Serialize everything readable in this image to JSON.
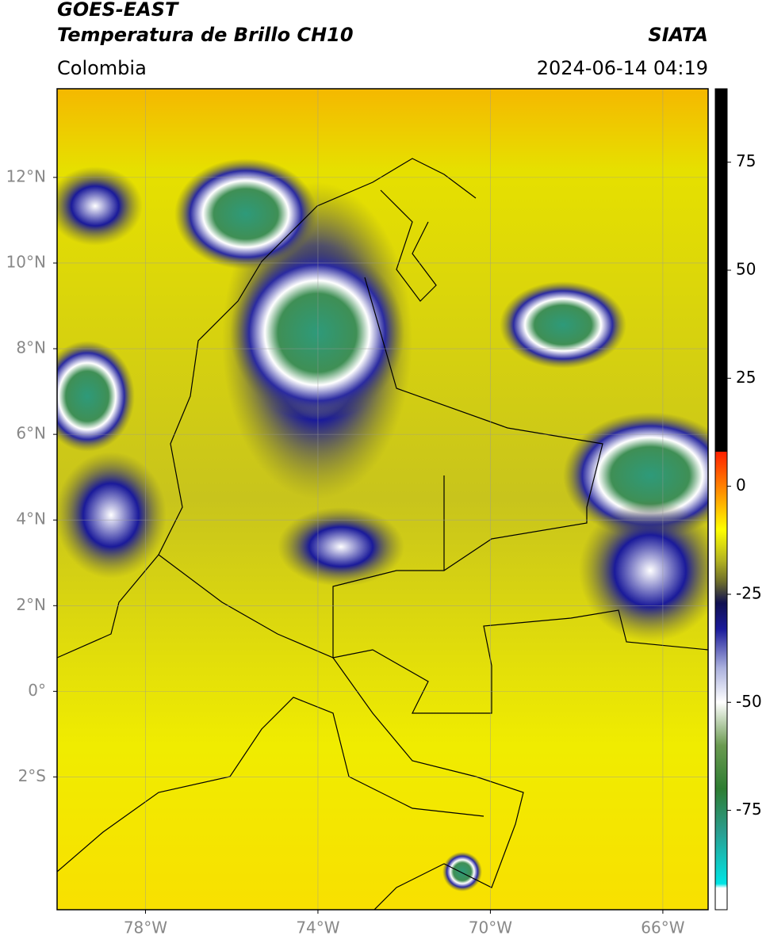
{
  "header": {
    "title": "GOES-EAST",
    "subtitle": "Temperatura de Brillo CH10",
    "source": "SIATA",
    "region": "Colombia",
    "timestamp": "2024-06-14 04:19"
  },
  "map": {
    "xlim": [
      -80.05,
      -64.95
    ],
    "ylim": [
      -5.1,
      14.07
    ],
    "grid": true,
    "xticks": [
      {
        "value": -78,
        "label": "78°W"
      },
      {
        "value": -74,
        "label": "74°W"
      },
      {
        "value": -70,
        "label": "70°W"
      },
      {
        "value": -66,
        "label": "66°W"
      }
    ],
    "yticks": [
      {
        "value": 12,
        "label": "12°N"
      },
      {
        "value": 10,
        "label": "10°N"
      },
      {
        "value": 8,
        "label": "8°N"
      },
      {
        "value": 6,
        "label": "6°N"
      },
      {
        "value": 4,
        "label": "4°N"
      },
      {
        "value": 2,
        "label": "2°N"
      },
      {
        "value": 0,
        "label": "0°"
      },
      {
        "value": -2,
        "label": "2°S"
      }
    ]
  },
  "colorbar": {
    "lim": [
      -98,
      92
    ],
    "ticks": [
      -75,
      -50,
      -25,
      0,
      25,
      50,
      75
    ],
    "stops": [
      {
        "value": -98,
        "color": "#ffffff"
      },
      {
        "value": -93,
        "color": "#ffffff"
      },
      {
        "value": -92,
        "color": "#00e5e5"
      },
      {
        "value": -80,
        "color": "#2a9d8f"
      },
      {
        "value": -70,
        "color": "#2e7d32"
      },
      {
        "value": -60,
        "color": "#6a9a50"
      },
      {
        "value": -50,
        "color": "#ffffff"
      },
      {
        "value": -42,
        "color": "#aab0dd"
      },
      {
        "value": -33,
        "color": "#1a1a9a"
      },
      {
        "value": -27,
        "color": "#101050"
      },
      {
        "value": -22,
        "color": "#6f6f2a"
      },
      {
        "value": -17,
        "color": "#b5b520"
      },
      {
        "value": -10,
        "color": "#ffff00"
      },
      {
        "value": -2,
        "color": "#ff9900"
      },
      {
        "value": 8,
        "color": "#ff2000"
      },
      {
        "value": 8,
        "color": "#000000"
      },
      {
        "value": 92,
        "color": "#000000"
      }
    ]
  }
}
